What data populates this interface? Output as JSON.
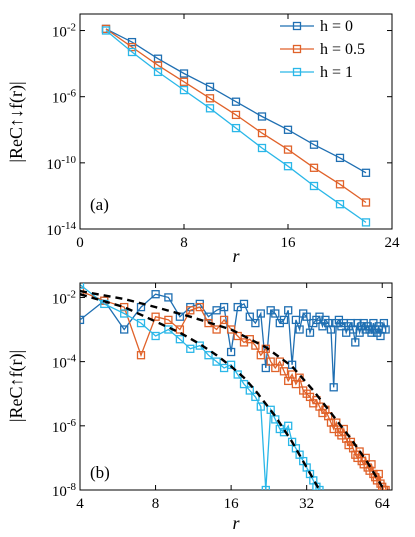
{
  "chart_data": [
    {
      "type": "line",
      "panel_label": "(a)",
      "xlabel": "r",
      "ylabel": "|ReC↑↓f(r)|",
      "xlim": [
        0,
        24
      ],
      "ylim_log10": [
        -14,
        -1
      ],
      "yscale": "log",
      "x_ticks": [
        0,
        8,
        16,
        24
      ],
      "x_tick_labels": [
        "0",
        "8",
        "16",
        "24"
      ],
      "y_tick_exponents": [
        -2,
        -6,
        -10,
        -14
      ],
      "y_tick_labels": [
        {
          "base": "10",
          "exp": "-2"
        },
        {
          "base": "10",
          "exp": "-6"
        },
        {
          "base": "10",
          "exp": "-10"
        },
        {
          "base": "10",
          "exp": "-14"
        }
      ],
      "legend_position": "top-right",
      "x": [
        2,
        4,
        6,
        8,
        10,
        12,
        14,
        16,
        18,
        20,
        22
      ],
      "series": [
        {
          "name": "h = 0",
          "color": "#1f6fb2",
          "log10_values": [
            -1.9,
            -2.7,
            -3.7,
            -4.6,
            -5.4,
            -6.3,
            -7.2,
            -8.0,
            -8.9,
            -9.7,
            -10.6
          ]
        },
        {
          "name": "h = 0.5",
          "color": "#e0622a",
          "log10_values": [
            -1.9,
            -3.0,
            -4.1,
            -5.1,
            -6.1,
            -7.1,
            -8.2,
            -9.2,
            -10.3,
            -11.3,
            -12.4
          ]
        },
        {
          "name": "h = 1",
          "color": "#2ab7e8",
          "log10_values": [
            -2.0,
            -3.3,
            -4.5,
            -5.6,
            -6.7,
            -7.9,
            -9.1,
            -10.2,
            -11.4,
            -12.5,
            -13.6
          ]
        }
      ]
    },
    {
      "type": "line",
      "panel_label": "(b)",
      "xlabel": "r",
      "ylabel": "|ReC↑f(r)|",
      "xscale": "log",
      "yscale": "log",
      "xlim": [
        4,
        70
      ],
      "ylim_log10": [
        -8,
        -1.55
      ],
      "x_ticks": [
        4,
        8,
        16,
        32,
        64
      ],
      "x_tick_labels": [
        "4",
        "8",
        "16",
        "32",
        "64"
      ],
      "y_tick_exponents": [
        -2,
        -4,
        -6,
        -8
      ],
      "y_tick_labels": [
        {
          "base": "10",
          "exp": "-2"
        },
        {
          "base": "10",
          "exp": "-4"
        },
        {
          "base": "10",
          "exp": "-6"
        },
        {
          "base": "10",
          "exp": "-8"
        }
      ],
      "series": [
        {
          "name": "h = 0",
          "color": "#1f6fb2",
          "x": [
            4,
            5,
            6,
            7,
            8,
            9,
            10,
            11,
            12,
            13,
            14,
            15,
            16,
            17,
            18,
            19,
            20,
            21,
            22,
            23,
            24,
            25,
            26,
            27,
            28,
            29,
            30,
            31,
            32,
            33,
            34,
            35,
            36,
            37,
            38,
            39,
            40,
            41,
            42,
            43,
            44,
            45,
            46,
            47,
            48,
            49,
            50,
            51,
            52,
            53,
            54,
            55,
            56,
            57,
            58,
            59,
            60,
            61,
            62,
            63,
            64,
            65,
            66
          ],
          "log10_values": [
            -2.7,
            -2.1,
            -3.0,
            -2.3,
            -1.9,
            -2.0,
            -2.6,
            -2.3,
            -2.2,
            -2.6,
            -2.4,
            -2.3,
            -3.7,
            -2.3,
            -2.2,
            -2.6,
            -2.8,
            -2.5,
            -4.2,
            -2.4,
            -2.5,
            -2.8,
            -2.7,
            -2.4,
            -4.1,
            -2.7,
            -3.0,
            -2.5,
            -2.6,
            -3.1,
            -2.8,
            -2.7,
            -2.6,
            -2.9,
            -2.7,
            -2.8,
            -3.0,
            -4.8,
            -2.8,
            -2.7,
            -2.9,
            -2.8,
            -3.1,
            -2.9,
            -2.8,
            -3.0,
            -3.4,
            -2.8,
            -3.1,
            -2.9,
            -2.8,
            -3.0,
            -2.9,
            -3.0,
            -3.1,
            -2.8,
            -3.0,
            -3.1,
            -2.9,
            -3.2,
            -3.0,
            -2.8,
            -3.0
          ]
        },
        {
          "name": "h = 0.5",
          "color": "#e0622a",
          "x": [
            4,
            5,
            6,
            7,
            8,
            9,
            10,
            11,
            12,
            13,
            14,
            15,
            16,
            17,
            18,
            19,
            20,
            21,
            22,
            23,
            24,
            25,
            26,
            27,
            28,
            29,
            30,
            31,
            32,
            33,
            34,
            35,
            36,
            37,
            38,
            39,
            40,
            41,
            42,
            43,
            44,
            45,
            46,
            47,
            48,
            49,
            50,
            51,
            52,
            53,
            54,
            55,
            56,
            57,
            58,
            59,
            60,
            61,
            62,
            63,
            64,
            65,
            66
          ],
          "log10_values": [
            -1.8,
            -2.1,
            -2.3,
            -3.8,
            -2.6,
            -2.7,
            -3.0,
            -2.4,
            -2.3,
            -2.8,
            -3.0,
            -2.7,
            -3.0,
            -3.2,
            -3.4,
            -3.3,
            -3.5,
            -3.8,
            -3.6,
            -4.0,
            -4.2,
            -4.0,
            -4.3,
            -4.6,
            -4.4,
            -4.7,
            -4.5,
            -4.9,
            -5.0,
            -5.1,
            -5.3,
            -5.2,
            -5.4,
            -5.6,
            -5.5,
            -5.7,
            -5.9,
            -6.1,
            -5.9,
            -6.2,
            -6.3,
            -6.1,
            -6.4,
            -6.6,
            -6.5,
            -6.7,
            -6.9,
            -7.0,
            -6.8,
            -7.1,
            -7.2,
            -7.0,
            -7.3,
            -7.4,
            -7.2,
            -7.5,
            -7.6,
            -7.7,
            -7.5,
            -7.8,
            -7.9,
            -8.0,
            -8.0
          ]
        },
        {
          "name": "h = 1",
          "color": "#2ab7e8",
          "x": [
            4,
            5,
            6,
            7,
            8,
            9,
            10,
            11,
            12,
            13,
            14,
            15,
            16,
            17,
            18,
            19,
            20,
            21,
            22,
            23,
            24,
            25,
            26,
            27,
            28,
            29,
            30,
            31,
            32,
            33,
            34,
            35,
            36
          ],
          "log10_values": [
            -1.6,
            -2.2,
            -2.5,
            -2.8,
            -3.2,
            -3.0,
            -3.3,
            -3.6,
            -3.5,
            -3.8,
            -4.0,
            -4.2,
            -4.1,
            -4.4,
            -4.7,
            -4.9,
            -5.1,
            -5.4,
            -8.0,
            -5.5,
            -5.8,
            -6.1,
            -6.2,
            -6.0,
            -6.5,
            -6.7,
            -6.9,
            -7.1,
            -7.3,
            -7.5,
            -7.7,
            -7.9,
            -8.0
          ]
        },
        {
          "name": "",
          "color": "#000000",
          "style": "dashed",
          "x": [
            4,
            6,
            8,
            11,
            16,
            22,
            28,
            34,
            40,
            48,
            56,
            64
          ],
          "log10_values": [
            -1.8,
            -2.05,
            -2.3,
            -2.6,
            -3.0,
            -3.55,
            -4.15,
            -4.9,
            -5.6,
            -6.4,
            -7.15,
            -7.9
          ]
        },
        {
          "name": "",
          "color": "#000000",
          "style": "dashed",
          "x": [
            4,
            6,
            8,
            10,
            12,
            14,
            16,
            18,
            20,
            24,
            28,
            32,
            36
          ],
          "log10_values": [
            -1.9,
            -2.3,
            -2.75,
            -3.1,
            -3.45,
            -3.8,
            -4.15,
            -4.5,
            -4.9,
            -5.7,
            -6.5,
            -7.3,
            -8.0
          ]
        }
      ]
    }
  ]
}
